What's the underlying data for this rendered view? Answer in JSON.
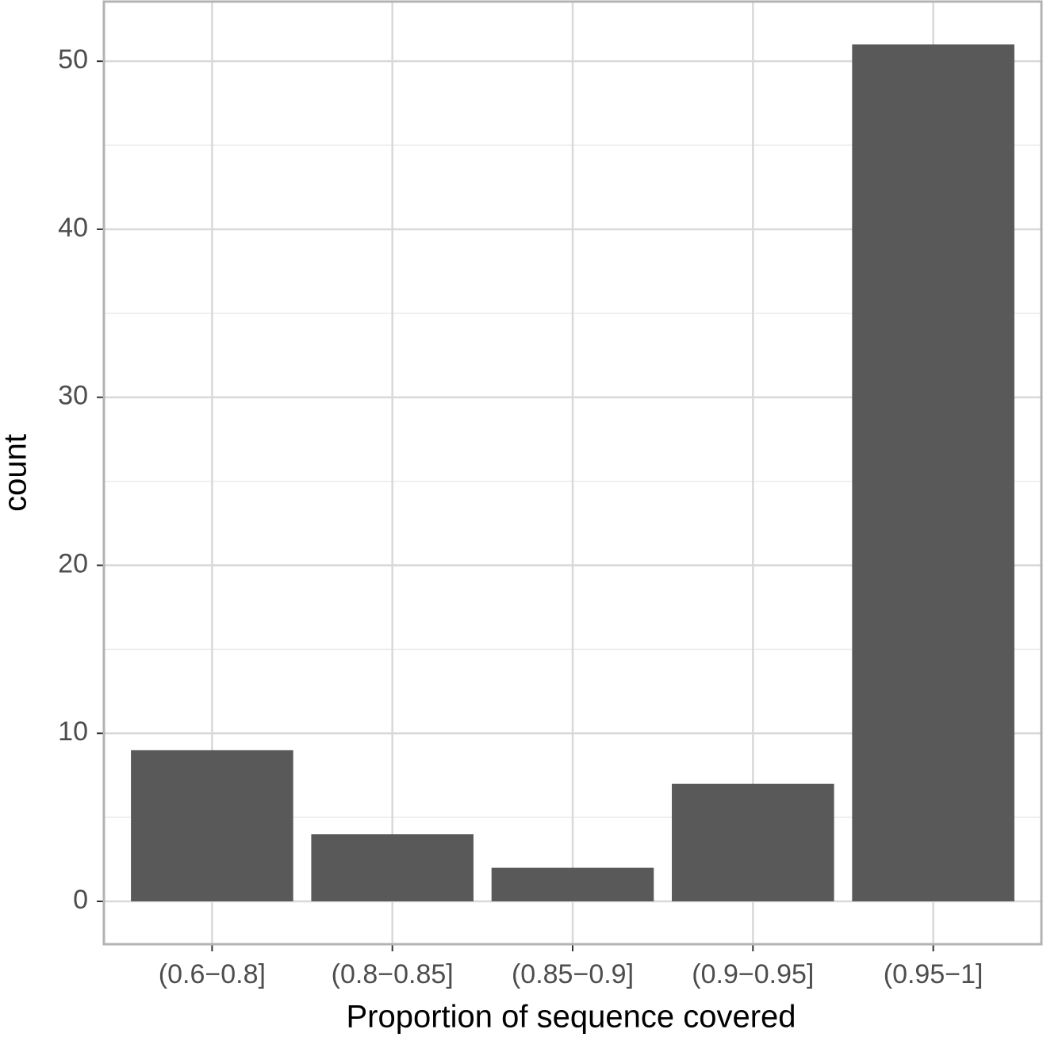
{
  "chart_data": {
    "type": "bar",
    "x_label": "Proportion of sequence covered",
    "y_label": "count",
    "categories": [
      "(0.6−0.8]",
      "(0.8−0.85]",
      "(0.85−0.9]",
      "(0.9−0.95]",
      "(0.95−1]"
    ],
    "values": [
      9,
      4,
      2,
      7,
      51
    ],
    "color": "#595959",
    "ylim": [
      -2.55,
      53.55
    ],
    "yticks": [
      0,
      10,
      20,
      30,
      40,
      50
    ],
    "y_minor_ticks": [
      5,
      15,
      25,
      35,
      45
    ],
    "grid": true
  }
}
